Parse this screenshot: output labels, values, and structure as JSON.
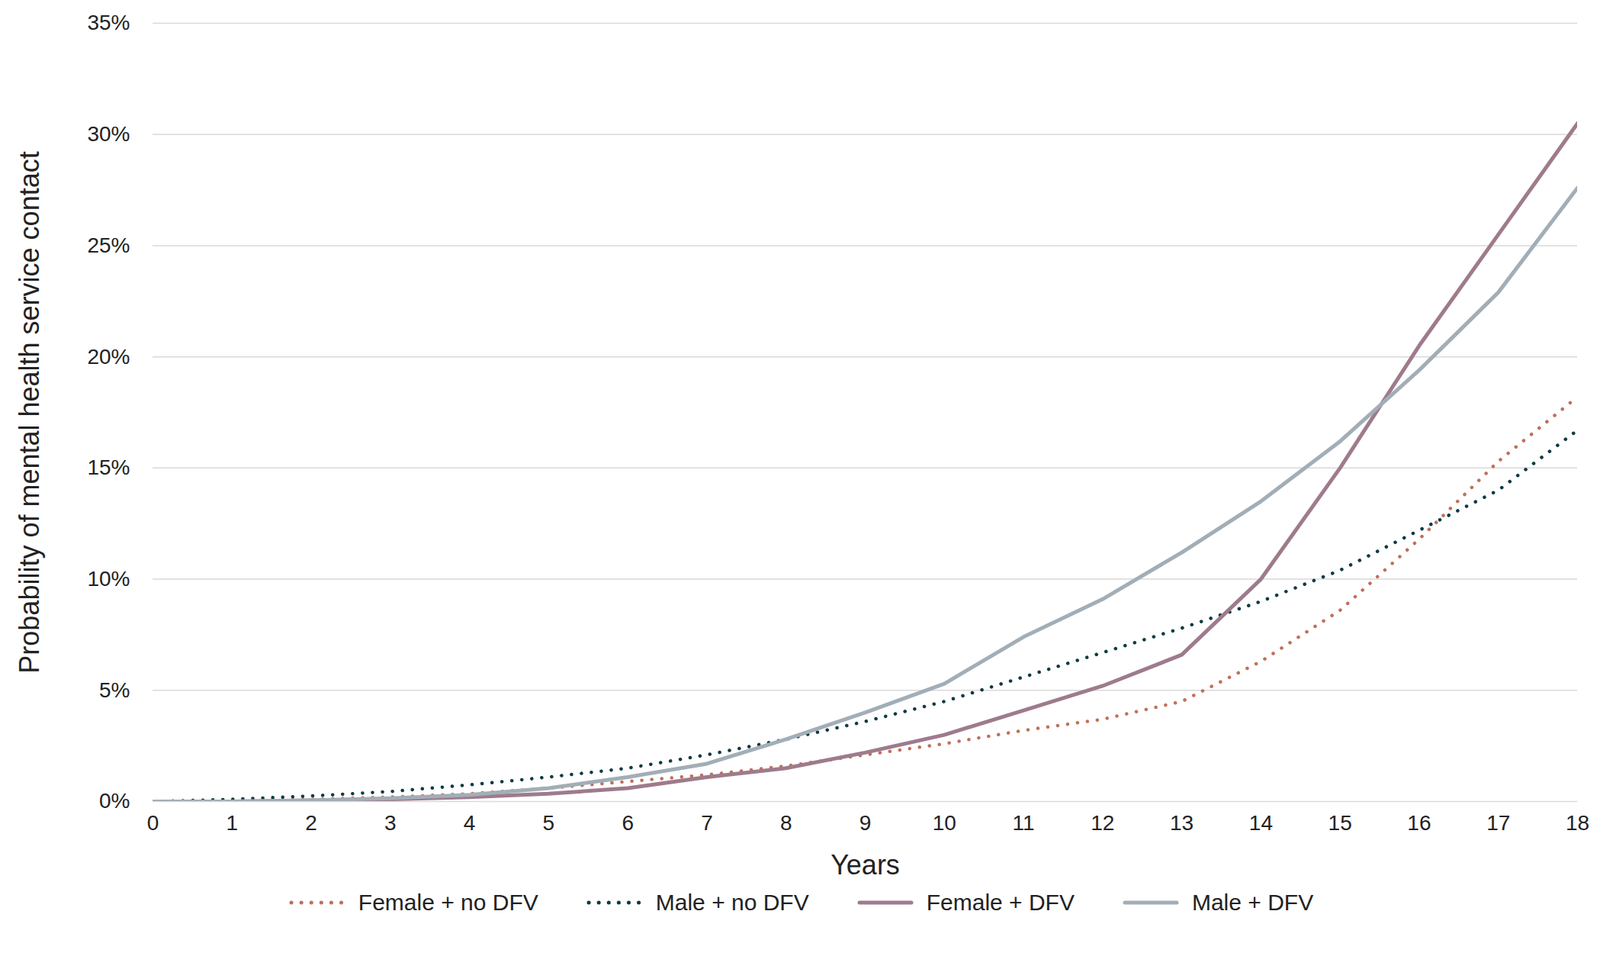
{
  "chart_data": {
    "type": "line",
    "xlabel": "Years",
    "ylabel": "Probability of mental health service contact",
    "x": [
      0,
      1,
      2,
      3,
      4,
      5,
      6,
      7,
      8,
      9,
      10,
      11,
      12,
      13,
      14,
      15,
      16,
      17,
      18
    ],
    "series": [
      {
        "name": "Female + no DFV",
        "color": "#c0705a",
        "line_style": "dotted",
        "values": [
          0,
          0.05,
          0.1,
          0.2,
          0.35,
          0.6,
          0.9,
          1.2,
          1.6,
          2.1,
          2.6,
          3.2,
          3.7,
          4.5,
          6.3,
          8.6,
          11.8,
          15.3,
          18.2
        ]
      },
      {
        "name": "Male + no DFV",
        "color": "#0f3a44",
        "line_style": "dotted",
        "values": [
          0,
          0.1,
          0.25,
          0.45,
          0.75,
          1.1,
          1.5,
          2.1,
          2.8,
          3.6,
          4.5,
          5.6,
          6.7,
          7.8,
          9.0,
          10.4,
          12.2,
          14.0,
          16.7
        ]
      },
      {
        "name": "Female + DFV",
        "color": "#9e7b8c",
        "line_style": "solid",
        "values": [
          0,
          0,
          0.05,
          0.1,
          0.2,
          0.35,
          0.6,
          1.1,
          1.5,
          2.2,
          3.0,
          4.1,
          5.2,
          6.6,
          10.0,
          15.0,
          20.5,
          25.5,
          30.5
        ]
      },
      {
        "name": "Male + DFV",
        "color": "#a2aeb7",
        "line_style": "solid",
        "values": [
          0,
          0,
          0.05,
          0.15,
          0.3,
          0.6,
          1.1,
          1.7,
          2.8,
          4.0,
          5.3,
          7.4,
          9.1,
          11.2,
          13.5,
          16.2,
          19.4,
          22.9,
          27.6
        ]
      }
    ],
    "xlim": [
      0,
      18
    ],
    "xticks": [
      0,
      1,
      2,
      3,
      4,
      5,
      6,
      7,
      8,
      9,
      10,
      11,
      12,
      13,
      14,
      15,
      16,
      17,
      18
    ],
    "ylim": [
      0,
      35
    ],
    "yticks": [
      {
        "value": 0,
        "label": "0%"
      },
      {
        "value": 5,
        "label": "5%"
      },
      {
        "value": 10,
        "label": "10%"
      },
      {
        "value": 15,
        "label": "15%"
      },
      {
        "value": 20,
        "label": "20%"
      },
      {
        "value": 25,
        "label": "25%"
      },
      {
        "value": 30,
        "label": "30%"
      },
      {
        "value": 35,
        "label": "35%"
      }
    ],
    "grid": true,
    "legend": "bottom"
  }
}
